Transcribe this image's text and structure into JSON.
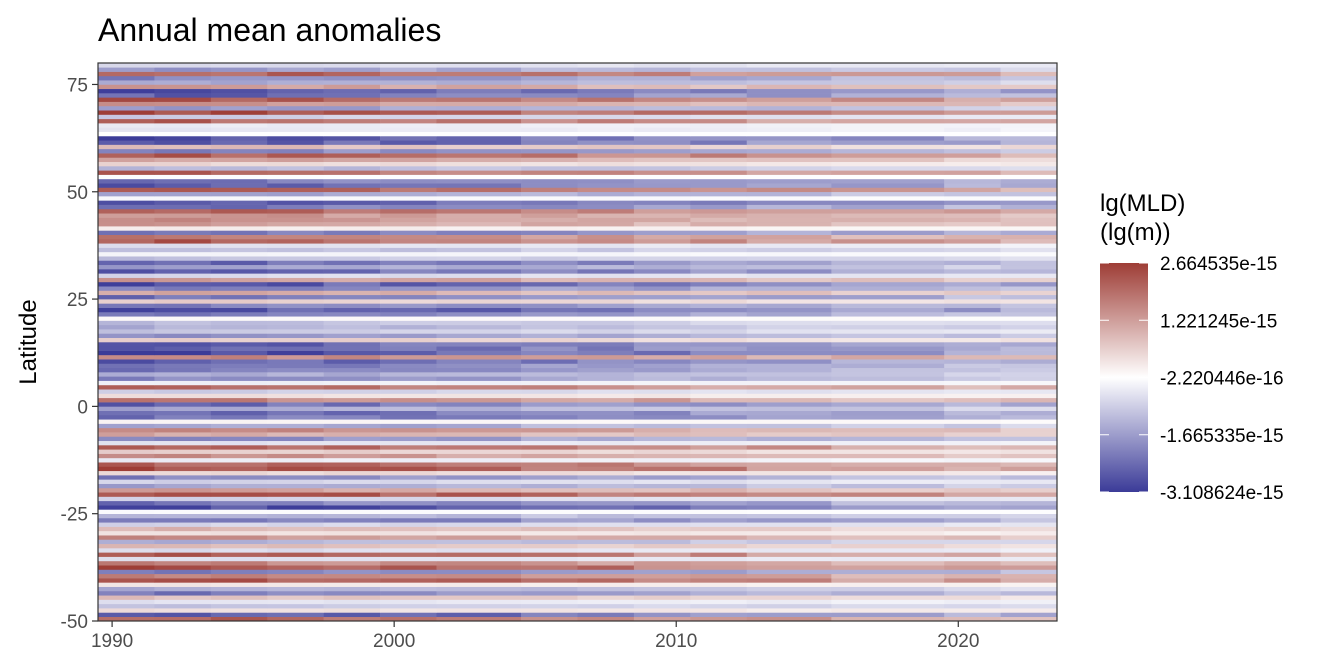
{
  "chart_data": {
    "type": "heatmap",
    "title": "Annual mean anomalies",
    "xlabel": "",
    "ylabel": "Latitude",
    "xlim": [
      1989.5,
      2023.5
    ],
    "ylim": [
      -50,
      80
    ],
    "x_ticks": [
      1990,
      2000,
      2010,
      2020
    ],
    "y_ticks": [
      -50,
      -25,
      0,
      25,
      50,
      75
    ],
    "x_tick_labels": [
      "1990",
      "2000",
      "2010",
      "2020"
    ],
    "y_tick_labels": [
      "-50",
      "-25",
      "0",
      "25",
      "50",
      "75"
    ],
    "lat_step": 1,
    "colorbar": {
      "title_line1": "lg(MLD)",
      "title_line2": "(lg(m))",
      "min": -3.108624e-15,
      "max": 2.664535e-15,
      "ticks": [
        2.664535e-15,
        1.221245e-15,
        -2.220446e-16,
        -1.665335e-15,
        -3.108624e-15
      ],
      "tick_labels": [
        "2.664535e-15",
        "1.221245e-15",
        "-2.220446e-16",
        "-1.665335e-15",
        "-3.108624e-15"
      ],
      "colors": {
        "low": "#3B3B98",
        "mid": "#FFFFFF",
        "high": "#9E3D36"
      }
    },
    "grid": false,
    "legend_position": "right"
  }
}
